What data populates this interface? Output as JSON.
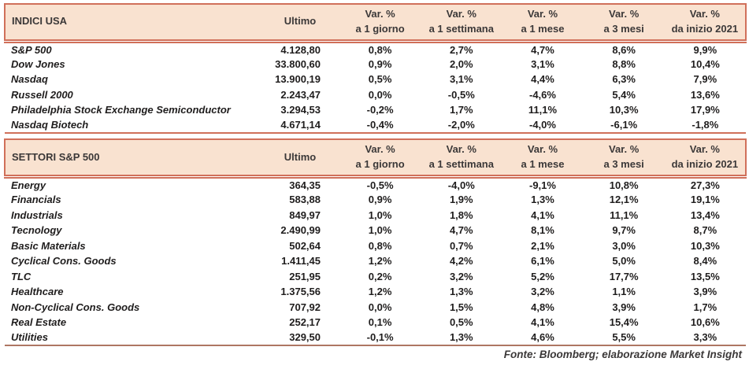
{
  "colors": {
    "header_bg": "#f9e2d0",
    "border_salmon": "#d0705a",
    "border_muted": "#ae7663",
    "text_dark": "#3b3838"
  },
  "footer": {
    "source": "Fonte: Bloomberg; elaborazione Market Insight"
  },
  "tables": [
    {
      "title": "INDICI USA",
      "ultimo_label": "Ultimo",
      "var_headers": [
        {
          "line1": "Var. %",
          "line2": "a 1 giorno"
        },
        {
          "line1": "Var. %",
          "line2": "a 1 settimana"
        },
        {
          "line1": "Var. %",
          "line2": "a 1 mese"
        },
        {
          "line1": "Var. %",
          "line2": "a 3 mesi"
        },
        {
          "line1": "Var. %",
          "line2": "da inizio 2021"
        }
      ],
      "rows": [
        {
          "name": "S&P 500",
          "ultimo": "4.128,80",
          "vars": [
            "0,8%",
            "2,7%",
            "4,7%",
            "8,6%",
            "9,9%"
          ]
        },
        {
          "name": "Dow Jones",
          "ultimo": "33.800,60",
          "vars": [
            "0,9%",
            "2,0%",
            "3,1%",
            "8,8%",
            "10,4%"
          ]
        },
        {
          "name": "Nasdaq",
          "ultimo": "13.900,19",
          "vars": [
            "0,5%",
            "3,1%",
            "4,4%",
            "6,3%",
            "7,9%"
          ]
        },
        {
          "name": "Russell 2000",
          "ultimo": "2.243,47",
          "vars": [
            "0,0%",
            "-0,5%",
            "-4,6%",
            "5,4%",
            "13,6%"
          ]
        },
        {
          "name": "Philadelphia Stock Exchange Semiconductor",
          "ultimo": "3.294,53",
          "vars": [
            "-0,2%",
            "1,7%",
            "11,1%",
            "10,3%",
            "17,9%"
          ]
        },
        {
          "name": "Nasdaq Biotech",
          "ultimo": "4.671,14",
          "vars": [
            "-0,4%",
            "-2,0%",
            "-4,0%",
            "-6,1%",
            "-1,8%"
          ]
        }
      ]
    },
    {
      "title": "SETTORI S&P 500",
      "ultimo_label": "Ultimo",
      "var_headers": [
        {
          "line1": "Var. %",
          "line2": "a 1 giorno"
        },
        {
          "line1": "Var. %",
          "line2": "a 1 settimana"
        },
        {
          "line1": "Var. %",
          "line2": "a 1 mese"
        },
        {
          "line1": "Var. %",
          "line2": "a 3 mesi"
        },
        {
          "line1": "Var. %",
          "line2": "da inizio 2021"
        }
      ],
      "rows": [
        {
          "name": "Energy",
          "ultimo": "364,35",
          "vars": [
            "-0,5%",
            "-4,0%",
            "-9,1%",
            "10,8%",
            "27,3%"
          ]
        },
        {
          "name": "Financials",
          "ultimo": "583,88",
          "vars": [
            "0,9%",
            "1,9%",
            "1,3%",
            "12,1%",
            "19,1%"
          ]
        },
        {
          "name": "Industrials",
          "ultimo": "849,97",
          "vars": [
            "1,0%",
            "1,8%",
            "4,1%",
            "11,1%",
            "13,4%"
          ]
        },
        {
          "name": "Tecnology",
          "ultimo": "2.490,99",
          "vars": [
            "1,0%",
            "4,7%",
            "8,1%",
            "9,7%",
            "8,7%"
          ]
        },
        {
          "name": "Basic Materials",
          "ultimo": "502,64",
          "vars": [
            "0,8%",
            "0,7%",
            "2,1%",
            "3,0%",
            "10,3%"
          ]
        },
        {
          "name": "Cyclical Cons. Goods",
          "ultimo": "1.411,45",
          "vars": [
            "1,2%",
            "4,2%",
            "6,1%",
            "5,0%",
            "8,4%"
          ]
        },
        {
          "name": "TLC",
          "ultimo": "251,95",
          "vars": [
            "0,2%",
            "3,2%",
            "5,2%",
            "17,7%",
            "13,5%"
          ]
        },
        {
          "name": "Healthcare",
          "ultimo": "1.375,56",
          "vars": [
            "1,2%",
            "1,3%",
            "3,2%",
            "1,1%",
            "3,9%"
          ]
        },
        {
          "name": "Non-Cyclical Cons. Goods",
          "ultimo": "707,92",
          "vars": [
            "0,0%",
            "1,5%",
            "4,8%",
            "3,9%",
            "1,7%"
          ]
        },
        {
          "name": "Real Estate",
          "ultimo": "252,17",
          "vars": [
            "0,1%",
            "0,5%",
            "4,1%",
            "15,4%",
            "10,6%"
          ]
        },
        {
          "name": "Utilities",
          "ultimo": "329,50",
          "vars": [
            "-0,1%",
            "1,3%",
            "4,6%",
            "5,5%",
            "3,3%"
          ]
        }
      ]
    }
  ]
}
